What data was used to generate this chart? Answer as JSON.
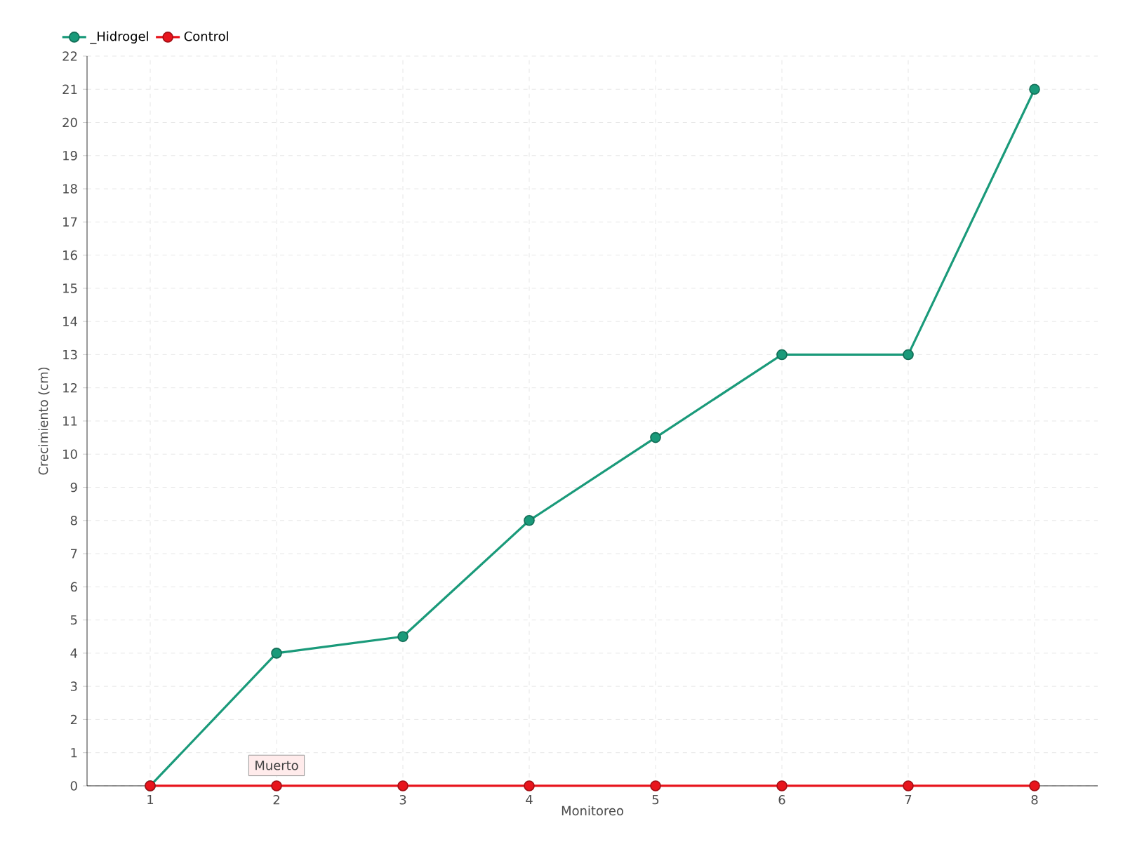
{
  "chart_data": {
    "type": "line",
    "xlabel": "Monitoreo",
    "ylabel": "Crecimiento (cm)",
    "categories": [
      "1",
      "2",
      "3",
      "4",
      "5",
      "6",
      "7",
      "8"
    ],
    "series": [
      {
        "name": "_Hidrogel",
        "color": "#1a9a7a",
        "values": [
          0,
          4,
          4.5,
          8,
          10.5,
          13,
          13,
          21
        ]
      },
      {
        "name": "Control",
        "color": "#e8141c",
        "values": [
          0,
          0,
          0,
          0,
          0,
          0,
          0,
          0
        ]
      }
    ],
    "ylim": [
      0,
      22
    ],
    "yticks": [
      0,
      1,
      2,
      3,
      4,
      5,
      6,
      7,
      8,
      9,
      10,
      11,
      12,
      13,
      14,
      15,
      16,
      17,
      18,
      19,
      20,
      21,
      22
    ],
    "grid": true,
    "legend": "top left",
    "marker": "circle",
    "line_style": "solid",
    "annotations": [
      {
        "text": "Muerto",
        "x": "2",
        "y": 0
      }
    ]
  }
}
